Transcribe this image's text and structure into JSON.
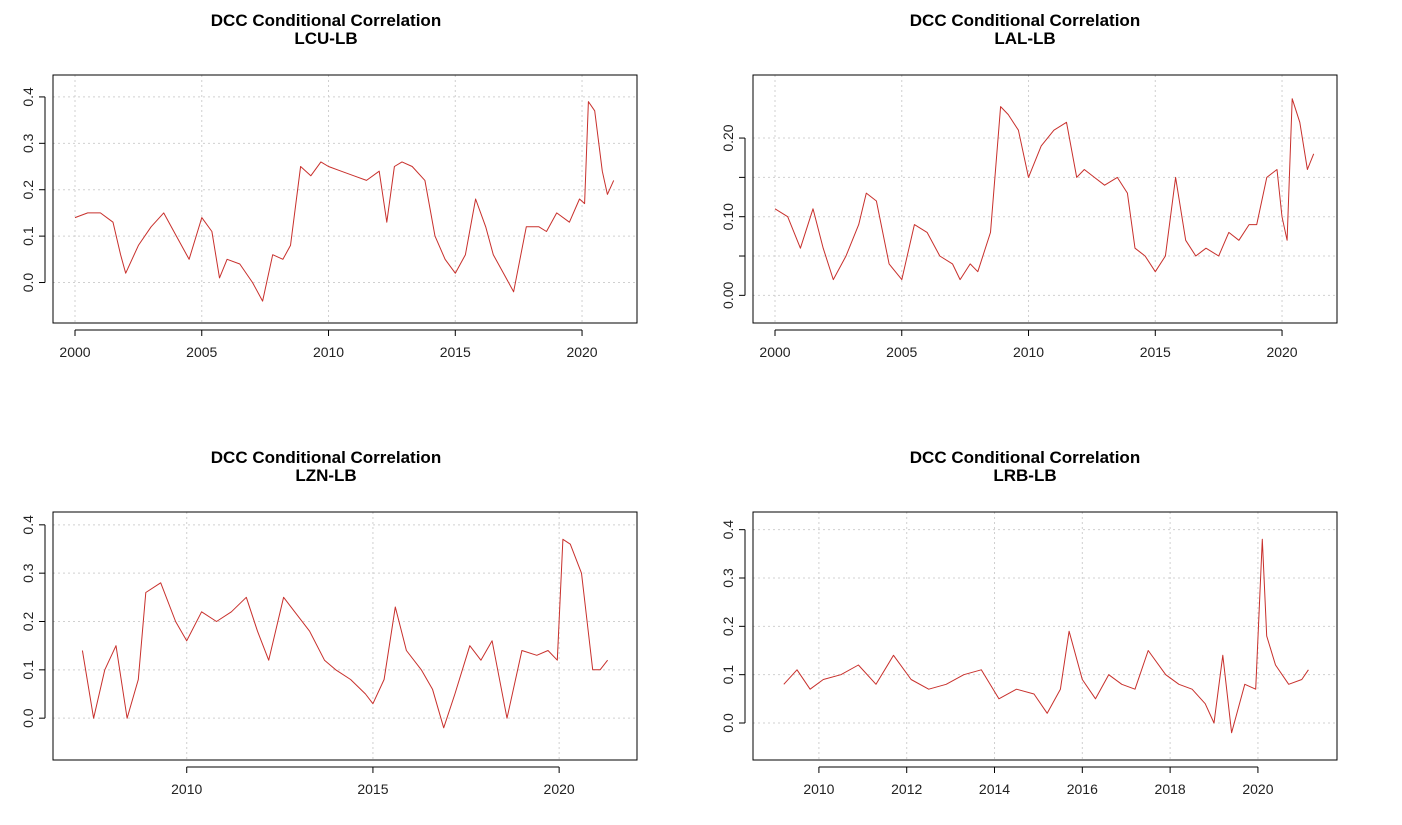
{
  "colors": {
    "series": "#c8302c",
    "grid": "#d0d0d0",
    "axis": "#000000"
  },
  "chart_data": [
    {
      "type": "line",
      "title": "DCC Conditional Correlation",
      "subtitle": "LCU-LB",
      "xlim": [
        2000,
        2021.3
      ],
      "ylim": [
        -0.07,
        0.43
      ],
      "xticks": [
        2000,
        2005,
        2010,
        2015,
        2020
      ],
      "yticks": [
        0.0,
        0.1,
        0.2,
        0.3,
        0.4
      ],
      "ytick_labels": [
        "0.0",
        "0.1",
        "0.2",
        "0.3",
        "0.4"
      ],
      "grid": true,
      "x": [
        2000.0,
        2000.5,
        2001.0,
        2001.5,
        2001.8,
        2002.0,
        2002.5,
        2003.0,
        2003.5,
        2004.0,
        2004.5,
        2005.0,
        2005.4,
        2005.7,
        2006.0,
        2006.5,
        2007.0,
        2007.4,
        2007.8,
        2008.2,
        2008.5,
        2008.9,
        2009.3,
        2009.7,
        2010.0,
        2010.5,
        2011.0,
        2011.5,
        2012.0,
        2012.3,
        2012.6,
        2012.9,
        2013.3,
        2013.8,
        2014.2,
        2014.6,
        2015.0,
        2015.4,
        2015.8,
        2016.2,
        2016.5,
        2016.9,
        2017.3,
        2017.8,
        2018.3,
        2018.6,
        2019.0,
        2019.5,
        2019.9,
        2020.1,
        2020.25,
        2020.5,
        2020.8,
        2021.0,
        2021.25
      ],
      "y": [
        0.14,
        0.15,
        0.15,
        0.13,
        0.06,
        0.02,
        0.08,
        0.12,
        0.15,
        0.1,
        0.05,
        0.14,
        0.11,
        0.01,
        0.05,
        0.04,
        0.0,
        -0.04,
        0.06,
        0.05,
        0.08,
        0.25,
        0.23,
        0.26,
        0.25,
        0.24,
        0.23,
        0.22,
        0.24,
        0.13,
        0.25,
        0.26,
        0.25,
        0.22,
        0.1,
        0.05,
        0.02,
        0.06,
        0.18,
        0.12,
        0.06,
        0.02,
        -0.02,
        0.12,
        0.12,
        0.11,
        0.15,
        0.13,
        0.18,
        0.17,
        0.39,
        0.37,
        0.24,
        0.19,
        0.22
      ]
    },
    {
      "type": "line",
      "title": "DCC Conditional Correlation",
      "subtitle": "LAL-LB",
      "xlim": [
        2000,
        2021.3
      ],
      "ylim": [
        -0.025,
        0.27
      ],
      "xticks": [
        2000,
        2005,
        2010,
        2015,
        2020
      ],
      "yticks": [
        0.0,
        0.05,
        0.1,
        0.15,
        0.2
      ],
      "ytick_labels": [
        "0.00",
        "",
        "0.10",
        "",
        "0.20"
      ],
      "grid": true,
      "x": [
        2000.0,
        2000.5,
        2001.0,
        2001.5,
        2001.9,
        2002.3,
        2002.8,
        2003.3,
        2003.6,
        2004.0,
        2004.5,
        2005.0,
        2005.5,
        2006.0,
        2006.5,
        2007.0,
        2007.3,
        2007.7,
        2008.0,
        2008.5,
        2008.9,
        2009.2,
        2009.6,
        2010.0,
        2010.5,
        2011.0,
        2011.5,
        2011.9,
        2012.2,
        2012.6,
        2013.0,
        2013.5,
        2013.9,
        2014.2,
        2014.6,
        2015.0,
        2015.4,
        2015.8,
        2016.2,
        2016.6,
        2017.0,
        2017.5,
        2017.9,
        2018.3,
        2018.7,
        2019.0,
        2019.4,
        2019.8,
        2020.0,
        2020.2,
        2020.4,
        2020.7,
        2021.0,
        2021.25
      ],
      "y": [
        0.11,
        0.1,
        0.06,
        0.11,
        0.06,
        0.02,
        0.05,
        0.09,
        0.13,
        0.12,
        0.04,
        0.02,
        0.09,
        0.08,
        0.05,
        0.04,
        0.02,
        0.04,
        0.03,
        0.08,
        0.24,
        0.23,
        0.21,
        0.15,
        0.19,
        0.21,
        0.22,
        0.15,
        0.16,
        0.15,
        0.14,
        0.15,
        0.13,
        0.06,
        0.05,
        0.03,
        0.05,
        0.15,
        0.07,
        0.05,
        0.06,
        0.05,
        0.08,
        0.07,
        0.09,
        0.09,
        0.15,
        0.16,
        0.1,
        0.07,
        0.25,
        0.22,
        0.16,
        0.18
      ]
    },
    {
      "type": "line",
      "title": "DCC Conditional Correlation",
      "subtitle": "LZN-LB",
      "xlim": [
        2007.0,
        2021.5
      ],
      "ylim": [
        -0.07,
        0.41
      ],
      "xticks": [
        2010,
        2015,
        2020
      ],
      "yticks": [
        0.0,
        0.1,
        0.2,
        0.3,
        0.4
      ],
      "ytick_labels": [
        "0.0",
        "0.1",
        "0.2",
        "0.3",
        "0.4"
      ],
      "grid": true,
      "x": [
        2007.2,
        2007.5,
        2007.8,
        2008.1,
        2008.4,
        2008.7,
        2008.9,
        2009.3,
        2009.7,
        2010.0,
        2010.4,
        2010.8,
        2011.2,
        2011.6,
        2011.9,
        2012.2,
        2012.6,
        2012.9,
        2013.3,
        2013.7,
        2014.0,
        2014.4,
        2014.8,
        2015.0,
        2015.3,
        2015.6,
        2015.9,
        2016.3,
        2016.6,
        2016.9,
        2017.2,
        2017.6,
        2017.9,
        2018.2,
        2018.6,
        2019.0,
        2019.4,
        2019.7,
        2019.95,
        2020.1,
        2020.3,
        2020.6,
        2020.9,
        2021.1,
        2021.3
      ],
      "y": [
        0.14,
        0.0,
        0.1,
        0.15,
        0.0,
        0.08,
        0.26,
        0.28,
        0.2,
        0.16,
        0.22,
        0.2,
        0.22,
        0.25,
        0.18,
        0.12,
        0.25,
        0.22,
        0.18,
        0.12,
        0.1,
        0.08,
        0.05,
        0.03,
        0.08,
        0.23,
        0.14,
        0.1,
        0.06,
        -0.02,
        0.05,
        0.15,
        0.12,
        0.16,
        0.0,
        0.14,
        0.13,
        0.14,
        0.12,
        0.37,
        0.36,
        0.3,
        0.1,
        0.1,
        0.12
      ]
    },
    {
      "type": "line",
      "title": "DCC Conditional Correlation",
      "subtitle": "LRB-LB",
      "xlim": [
        2009.0,
        2021.3
      ],
      "ylim": [
        -0.06,
        0.42
      ],
      "xticks": [
        2010,
        2012,
        2014,
        2016,
        2018,
        2020
      ],
      "yticks": [
        0.0,
        0.1,
        0.2,
        0.3,
        0.4
      ],
      "ytick_labels": [
        "0.0",
        "0.1",
        "0.2",
        "0.3",
        "0.4"
      ],
      "grid": true,
      "x": [
        2009.2,
        2009.5,
        2009.8,
        2010.1,
        2010.5,
        2010.9,
        2011.3,
        2011.7,
        2012.1,
        2012.5,
        2012.9,
        2013.3,
        2013.7,
        2014.1,
        2014.5,
        2014.9,
        2015.2,
        2015.5,
        2015.7,
        2016.0,
        2016.3,
        2016.6,
        2016.9,
        2017.2,
        2017.5,
        2017.9,
        2018.2,
        2018.5,
        2018.8,
        2019.0,
        2019.2,
        2019.4,
        2019.7,
        2019.95,
        2020.1,
        2020.2,
        2020.4,
        2020.7,
        2021.0,
        2021.15
      ],
      "y": [
        0.08,
        0.11,
        0.07,
        0.09,
        0.1,
        0.12,
        0.08,
        0.14,
        0.09,
        0.07,
        0.08,
        0.1,
        0.11,
        0.05,
        0.07,
        0.06,
        0.02,
        0.07,
        0.19,
        0.09,
        0.05,
        0.1,
        0.08,
        0.07,
        0.15,
        0.1,
        0.08,
        0.07,
        0.04,
        0.0,
        0.14,
        -0.02,
        0.08,
        0.07,
        0.38,
        0.18,
        0.12,
        0.08,
        0.09,
        0.11
      ]
    }
  ]
}
